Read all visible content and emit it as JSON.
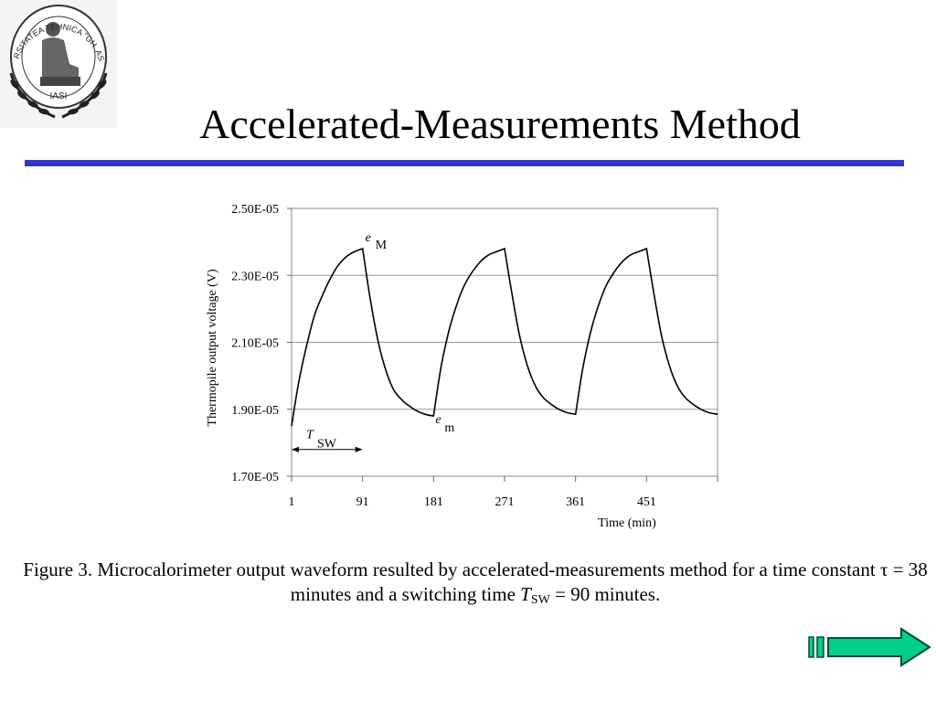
{
  "slide": {
    "title": "Accelerated-Measurements Method",
    "logo_text_top": "UNIVERSITATEA TEHNICA \"GH. ASACHI\"",
    "logo_text_bottom": "IASI"
  },
  "caption": {
    "part1": "Figure 3. Microcalorimeter output waveform resulted by accelerated-measurements method for a time constant ",
    "tau": "τ",
    "part2": " = 38 minutes and a switching time ",
    "T": "T",
    "sw": "SW",
    "part3": " = 90 minutes."
  },
  "chart_data": {
    "type": "line",
    "title": "",
    "xlabel": "Time (min)",
    "ylabel": "Thermopile output voltage (V)",
    "xlim": [
      1,
      541
    ],
    "ylim": [
      1.7e-05,
      2.5e-05
    ],
    "x_ticks": [
      1,
      91,
      181,
      271,
      361,
      451
    ],
    "y_ticks": [
      1.7e-05,
      1.9e-05,
      2.1e-05,
      2.3e-05,
      2.5e-05
    ],
    "y_tick_labels": [
      "1.70E-05",
      "1.90E-05",
      "2.10E-05",
      "2.30E-05",
      "2.50E-05"
    ],
    "grid": "horizontal",
    "series": [
      {
        "x": [
          1,
          10,
          20,
          30,
          40,
          50,
          60,
          70,
          80,
          91,
          100,
          110,
          120,
          130,
          140,
          150,
          160,
          170,
          181,
          190,
          200,
          210,
          220,
          230,
          240,
          250,
          260,
          271,
          280,
          290,
          300,
          310,
          320,
          330,
          340,
          350,
          361,
          370,
          380,
          390,
          400,
          410,
          420,
          430,
          440,
          451,
          460,
          470,
          480,
          490,
          500,
          510,
          520,
          530,
          541
        ],
        "values": [
          1.85e-05,
          1.98e-05,
          2.09e-05,
          2.18e-05,
          2.24e-05,
          2.29e-05,
          2.33e-05,
          2.355e-05,
          2.37e-05,
          2.38e-05,
          2.24e-05,
          2.11e-05,
          2.02e-05,
          1.96e-05,
          1.93e-05,
          1.91e-05,
          1.895e-05,
          1.885e-05,
          1.88e-05,
          2.02e-05,
          2.13e-05,
          2.21e-05,
          2.27e-05,
          2.31e-05,
          2.34e-05,
          2.36e-05,
          2.37e-05,
          2.38e-05,
          2.25e-05,
          2.12e-05,
          2.03e-05,
          1.97e-05,
          1.935e-05,
          1.915e-05,
          1.9e-05,
          1.89e-05,
          1.885e-05,
          2.02e-05,
          2.13e-05,
          2.21e-05,
          2.27e-05,
          2.31e-05,
          2.34e-05,
          2.36e-05,
          2.37e-05,
          2.38e-05,
          2.25e-05,
          2.12e-05,
          2.03e-05,
          1.97e-05,
          1.935e-05,
          1.915e-05,
          1.9e-05,
          1.89e-05,
          1.885e-05
        ]
      }
    ],
    "annotations": [
      {
        "italic": "e",
        "sub": "M",
        "x": 91,
        "y": 2.38e-05
      },
      {
        "italic": "e",
        "sub": "m",
        "x": 181,
        "y": 1.88e-05
      },
      {
        "italic": "T",
        "sub": "SW",
        "x_from": 1,
        "x_to": 91,
        "y": 1.81e-05
      }
    ]
  }
}
